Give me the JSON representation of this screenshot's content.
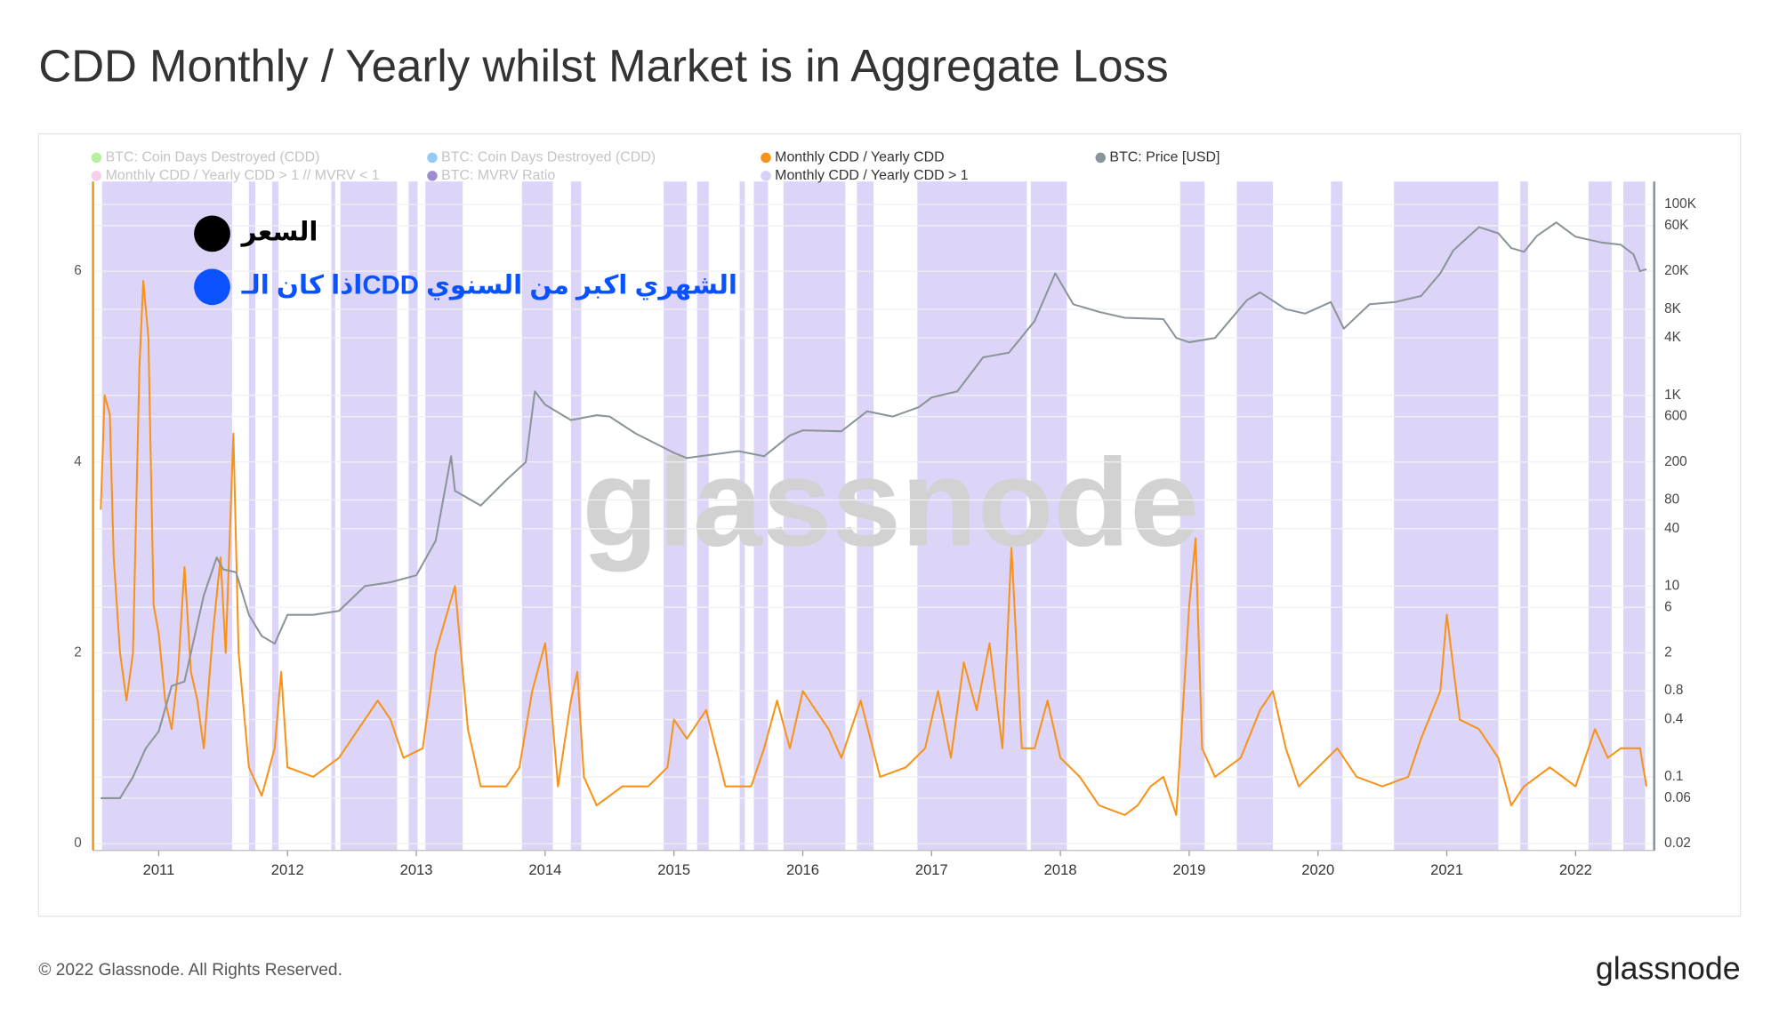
{
  "chart_data": {
    "type": "line",
    "title": "CDD Monthly / Yearly whilst Market is in Aggregate Loss",
    "xlim": [
      2010.49,
      2022.61
    ],
    "xticks": [
      2011,
      2012,
      2013,
      2014,
      2015,
      2016,
      2017,
      2018,
      2019,
      2020,
      2021,
      2022
    ],
    "ylim": [
      0,
      7
    ],
    "yticks": [
      0,
      2,
      4,
      6
    ],
    "y2lim": [
      0.02,
      200000
    ],
    "y2log": true,
    "y2ticks": [
      {
        "value": 100000,
        "label": "100K"
      },
      {
        "value": 60000,
        "label": "60K"
      },
      {
        "value": 20000,
        "label": "20K"
      },
      {
        "value": 8000,
        "label": "8K"
      },
      {
        "value": 4000,
        "label": "4K"
      },
      {
        "value": 1000,
        "label": "1K"
      },
      600,
      200,
      80,
      40,
      10,
      6,
      2,
      0.8,
      0.4,
      0.1,
      0.06,
      0.02
    ],
    "grid": true,
    "series": [
      {
        "name": "BTC: Coin Days Destroyed (CDD)",
        "color": "#7be34c",
        "active": false
      },
      {
        "name": "Monthly CDD / Yearly CDD > 1 // MVRV < 1",
        "color": "#f0a7d8",
        "active": false
      },
      {
        "name": "BTC: Coin Days Destroyed (CDD)",
        "color": "#3aa0ef",
        "active": false
      },
      {
        "name": "BTC: MVRV Ratio",
        "color": "#4b2ea8",
        "active": false
      },
      {
        "name": "Monthly CDD / Yearly CDD",
        "color": "#f7931a",
        "active": true,
        "x": [
          2010.55,
          2010.58,
          2010.62,
          2010.65,
          2010.7,
          2010.75,
          2010.8,
          2010.85,
          2010.88,
          2010.92,
          2010.96,
          2011.0,
          2011.05,
          2011.1,
          2011.15,
          2011.2,
          2011.25,
          2011.3,
          2011.35,
          2011.42,
          2011.48,
          2011.52,
          2011.58,
          2011.62,
          2011.7,
          2011.8,
          2011.9,
          2011.95,
          2012.0,
          2012.2,
          2012.4,
          2012.5,
          2012.7,
          2012.8,
          2012.9,
          2013.05,
          2013.15,
          2013.3,
          2013.4,
          2013.5,
          2013.7,
          2013.8,
          2013.9,
          2014.0,
          2014.05,
          2014.1,
          2014.2,
          2014.25,
          2014.3,
          2014.4,
          2014.6,
          2014.8,
          2014.95,
          2015.0,
          2015.1,
          2015.25,
          2015.4,
          2015.6,
          2015.7,
          2015.8,
          2015.9,
          2016.0,
          2016.1,
          2016.2,
          2016.3,
          2016.45,
          2016.6,
          2016.8,
          2016.95,
          2017.05,
          2017.15,
          2017.25,
          2017.35,
          2017.45,
          2017.55,
          2017.62,
          2017.7,
          2017.8,
          2017.9,
          2018.0,
          2018.15,
          2018.3,
          2018.5,
          2018.6,
          2018.7,
          2018.8,
          2018.9,
          2019.0,
          2019.05,
          2019.1,
          2019.2,
          2019.4,
          2019.55,
          2019.65,
          2019.75,
          2019.85,
          2020.0,
          2020.15,
          2020.3,
          2020.5,
          2020.7,
          2020.8,
          2020.95,
          2021.0,
          2021.1,
          2021.25,
          2021.4,
          2021.5,
          2021.6,
          2021.8,
          2022.0,
          2022.15,
          2022.25,
          2022.35,
          2022.5,
          2022.55
        ],
        "values": [
          3.5,
          4.7,
          4.5,
          3.0,
          2.0,
          1.5,
          2.0,
          5.0,
          5.9,
          5.3,
          2.5,
          2.2,
          1.5,
          1.2,
          1.8,
          2.9,
          1.8,
          1.5,
          1.0,
          2.2,
          3.0,
          2.0,
          4.3,
          2.0,
          0.8,
          0.5,
          1.0,
          1.8,
          0.8,
          0.7,
          0.9,
          1.1,
          1.5,
          1.3,
          0.9,
          1.0,
          2.0,
          2.7,
          1.2,
          0.6,
          0.6,
          0.8,
          1.6,
          2.1,
          1.4,
          0.6,
          1.5,
          1.8,
          0.7,
          0.4,
          0.6,
          0.6,
          0.8,
          1.3,
          1.1,
          1.4,
          0.6,
          0.6,
          1.0,
          1.5,
          1.0,
          1.6,
          1.4,
          1.2,
          0.9,
          1.5,
          0.7,
          0.8,
          1.0,
          1.6,
          0.9,
          1.9,
          1.4,
          2.1,
          1.0,
          3.1,
          1.0,
          1.0,
          1.5,
          0.9,
          0.7,
          0.4,
          0.3,
          0.4,
          0.6,
          0.7,
          0.3,
          2.5,
          3.2,
          1.0,
          0.7,
          0.9,
          1.4,
          1.6,
          1.0,
          0.6,
          0.8,
          1.0,
          0.7,
          0.6,
          0.7,
          1.1,
          1.6,
          2.4,
          1.3,
          1.2,
          0.9,
          0.4,
          0.6,
          0.8,
          0.6,
          1.2,
          0.9,
          1.0,
          1.0,
          0.6
        ]
      },
      {
        "name": "Monthly CDD / Yearly CDD > 1",
        "color": "#d9d0f7",
        "active": true,
        "band": true,
        "ranges": [
          [
            2010.56,
            2011.57
          ],
          [
            2011.7,
            2011.75
          ],
          [
            2011.88,
            2011.93
          ],
          [
            2012.34,
            2012.37
          ],
          [
            2012.41,
            2012.85
          ],
          [
            2012.94,
            2013.01
          ],
          [
            2013.07,
            2013.36
          ],
          [
            2013.82,
            2014.06
          ],
          [
            2014.2,
            2014.28
          ],
          [
            2014.92,
            2015.1
          ],
          [
            2015.18,
            2015.27
          ],
          [
            2015.51,
            2015.55
          ],
          [
            2015.62,
            2015.73
          ],
          [
            2015.85,
            2016.33
          ],
          [
            2016.42,
            2016.55
          ],
          [
            2016.89,
            2017.74
          ],
          [
            2017.77,
            2018.05
          ],
          [
            2018.93,
            2019.12
          ],
          [
            2019.37,
            2019.65
          ],
          [
            2020.1,
            2020.19
          ],
          [
            2020.59,
            2021.4
          ],
          [
            2021.57,
            2021.63
          ],
          [
            2022.1,
            2022.28
          ],
          [
            2022.37,
            2022.54
          ]
        ]
      },
      {
        "name": "BTC: Price [USD]",
        "color": "#8a9499",
        "active": true,
        "axis": "y2",
        "x": [
          2010.55,
          2010.7,
          2010.8,
          2010.9,
          2011.0,
          2011.1,
          2011.2,
          2011.35,
          2011.45,
          2011.5,
          2011.6,
          2011.7,
          2011.8,
          2011.9,
          2012.0,
          2012.2,
          2012.4,
          2012.6,
          2012.8,
          2013.0,
          2013.15,
          2013.27,
          2013.3,
          2013.5,
          2013.7,
          2013.85,
          2013.92,
          2014.0,
          2014.2,
          2014.4,
          2014.5,
          2014.7,
          2015.0,
          2015.1,
          2015.3,
          2015.5,
          2015.7,
          2015.9,
          2016.0,
          2016.3,
          2016.5,
          2016.7,
          2016.9,
          2017.0,
          2017.2,
          2017.4,
          2017.6,
          2017.8,
          2017.96,
          2018.1,
          2018.3,
          2018.5,
          2018.8,
          2018.9,
          2019.0,
          2019.2,
          2019.45,
          2019.55,
          2019.75,
          2019.9,
          2020.1,
          2020.2,
          2020.4,
          2020.6,
          2020.8,
          2020.95,
          2021.05,
          2021.25,
          2021.4,
          2021.5,
          2021.6,
          2021.7,
          2021.85,
          2022.0,
          2022.2,
          2022.35,
          2022.45,
          2022.5,
          2022.55
        ],
        "values": [
          0.06,
          0.06,
          0.1,
          0.2,
          0.3,
          0.9,
          1,
          8,
          20,
          15,
          14,
          5,
          3,
          2.5,
          5,
          5,
          5.5,
          10,
          11,
          13,
          30,
          230,
          100,
          70,
          130,
          200,
          1100,
          800,
          550,
          620,
          600,
          400,
          250,
          220,
          240,
          260,
          230,
          380,
          430,
          420,
          680,
          600,
          750,
          950,
          1100,
          2500,
          2800,
          6000,
          19000,
          9000,
          7500,
          6500,
          6300,
          4000,
          3600,
          4000,
          10000,
          12000,
          8000,
          7200,
          9500,
          5000,
          9000,
          9500,
          11000,
          19000,
          33000,
          58000,
          50000,
          35000,
          32000,
          47000,
          65000,
          46000,
          40000,
          38000,
          30000,
          20000,
          21000
        ]
      }
    ],
    "annotations": [
      {
        "text": "السعر",
        "color": "#000000"
      },
      {
        "text": "اذا كان الـCDD الشهري اكبر من السنوي",
        "color": "#0a52ff"
      }
    ],
    "watermark": "glassnode"
  },
  "footer": {
    "copyright": "© 2022 Glassnode. All Rights Reserved.",
    "logo": "glassnode"
  }
}
